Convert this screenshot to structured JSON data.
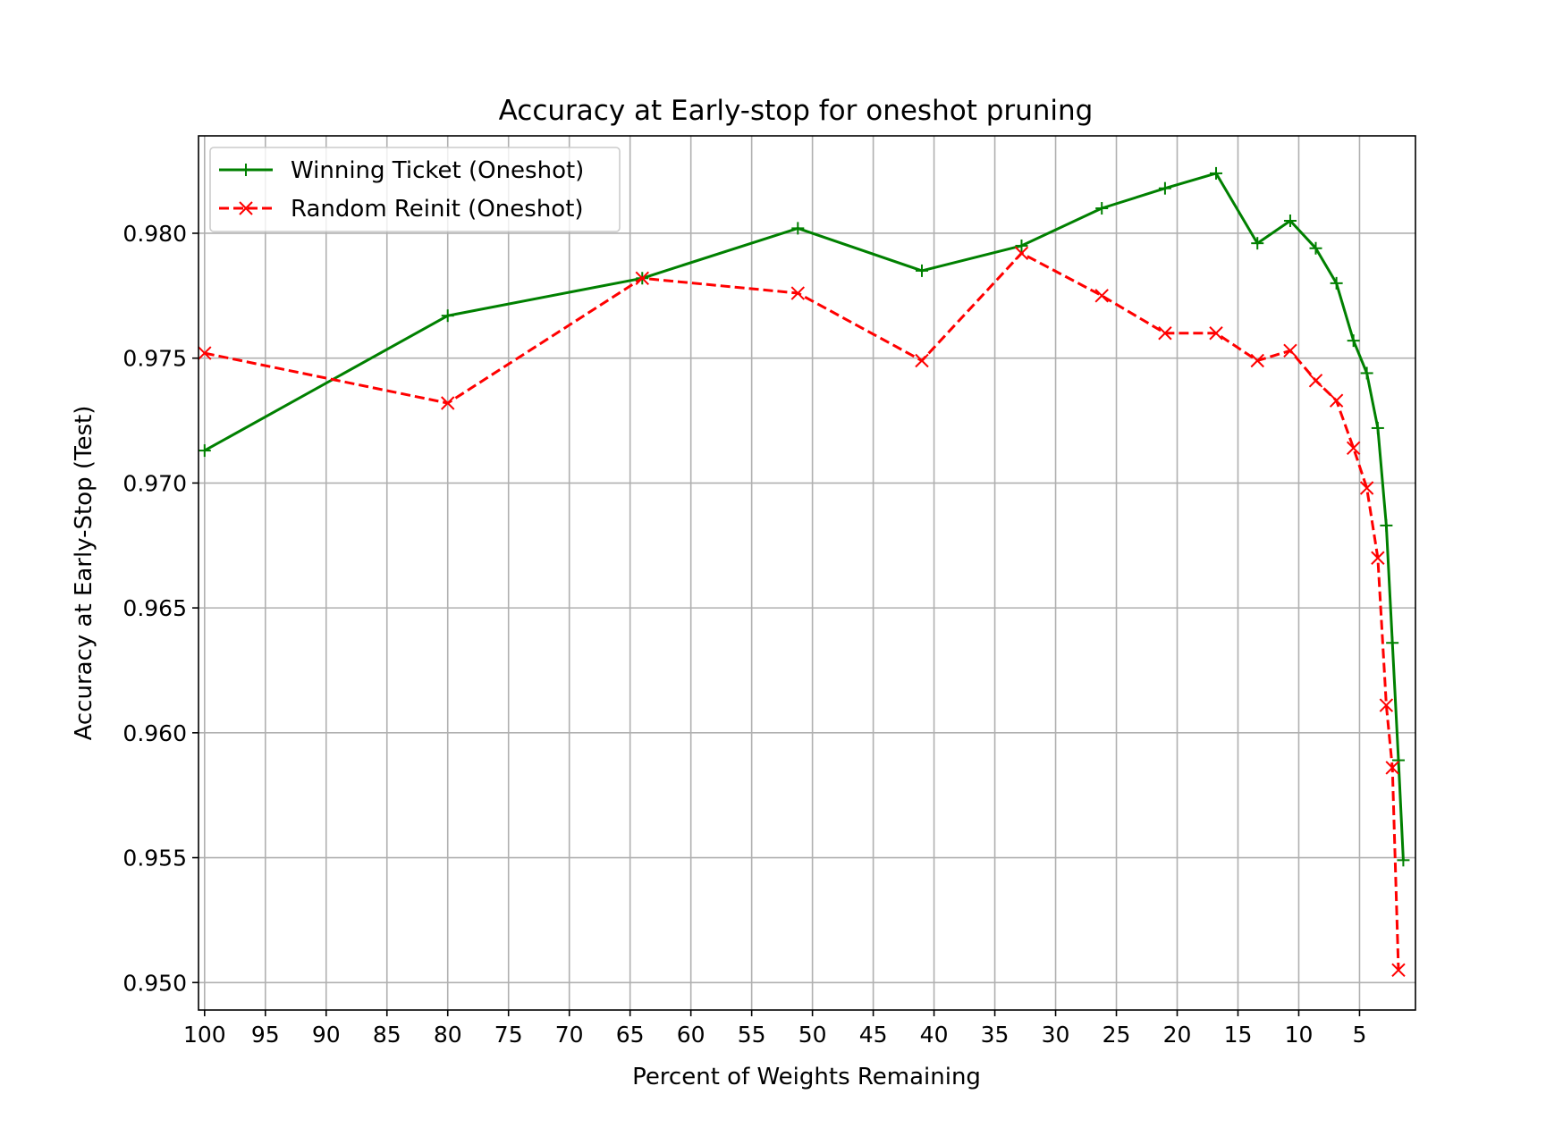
{
  "chart_data": {
    "type": "line",
    "title": "Accuracy at Early-stop for oneshot pruning",
    "xlabel": "Percent of Weights Remaining",
    "ylabel": "Accuracy at Early-Stop (Test)",
    "x_axis_reversed": true,
    "xlim": [
      100.5,
      0.4
    ],
    "ylim": [
      0.9489,
      0.9839
    ],
    "xticks": [
      100,
      95,
      90,
      85,
      80,
      75,
      70,
      65,
      60,
      55,
      50,
      45,
      40,
      35,
      30,
      25,
      20,
      15,
      10,
      5
    ],
    "xtick_labels": [
      "100",
      "95",
      "90",
      "85",
      "80",
      "75",
      "70",
      "65",
      "60",
      "55",
      "50",
      "45",
      "40",
      "35",
      "30",
      "25",
      "20",
      "15",
      "10",
      "5"
    ],
    "yticks": [
      0.95,
      0.955,
      0.96,
      0.965,
      0.97,
      0.975,
      0.98
    ],
    "ytick_labels": [
      "0.950",
      "0.955",
      "0.960",
      "0.965",
      "0.970",
      "0.975",
      "0.980"
    ],
    "grid": true,
    "legend_position": "top-left",
    "x": [
      100,
      80,
      64,
      51.2,
      41,
      32.8,
      26.2,
      21,
      16.8,
      13.4,
      10.7,
      8.6,
      6.9,
      5.5,
      4.4,
      3.5,
      2.8,
      2.3,
      1.8,
      1.4
    ],
    "series": [
      {
        "name": "Winning Ticket (Oneshot)",
        "color": "#008000",
        "line_style": "solid",
        "marker": "plus",
        "values": [
          0.9713,
          0.9767,
          0.9782,
          0.9802,
          0.9785,
          0.9795,
          0.981,
          0.9818,
          0.9824,
          0.9796,
          0.9805,
          0.9794,
          0.978,
          0.9757,
          0.9744,
          0.9722,
          0.9683,
          0.9636,
          0.9589,
          0.9549
        ]
      },
      {
        "name": "Random Reinit (Oneshot)",
        "color": "#ff0000",
        "line_style": "dashed",
        "marker": "x",
        "values": [
          0.9752,
          0.9732,
          0.9782,
          0.9776,
          0.9749,
          0.9792,
          0.9775,
          0.976,
          0.976,
          0.9749,
          0.9753,
          0.9741,
          0.9733,
          0.9714,
          0.9698,
          0.967,
          0.9611,
          0.9586,
          0.9505,
          null
        ]
      }
    ]
  }
}
